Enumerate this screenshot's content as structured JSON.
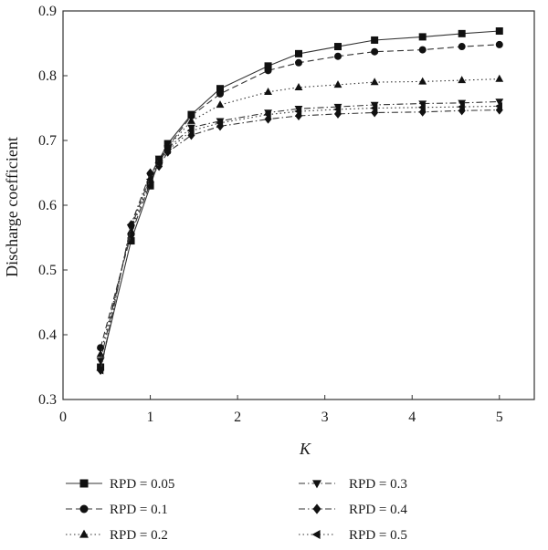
{
  "chart_data": {
    "type": "line",
    "title": "",
    "xlabel": "K",
    "ylabel": "Discharge coefficient",
    "xlim": [
      0,
      5.4
    ],
    "ylim": [
      0.3,
      0.9
    ],
    "xticks": [
      "0",
      "1",
      "2",
      "3",
      "4",
      "5"
    ],
    "yticks": [
      "0.3",
      "0.4",
      "0.5",
      "0.6",
      "0.7",
      "0.8",
      "0.9"
    ],
    "grid": false,
    "legend_position": "bottom",
    "series": [
      {
        "name": "RPD = 0.05",
        "marker": "square",
        "dash": "solid",
        "x": [
          0.43,
          0.78,
          1.0,
          1.1,
          1.2,
          1.47,
          1.8,
          2.35,
          2.7,
          3.15,
          3.57,
          4.12,
          4.57,
          5.0
        ],
        "y": [
          0.35,
          0.545,
          0.63,
          0.67,
          0.695,
          0.74,
          0.78,
          0.815,
          0.834,
          0.845,
          0.855,
          0.86,
          0.865,
          0.869
        ]
      },
      {
        "name": "RPD = 0.1",
        "marker": "circle",
        "dash": "dashed",
        "x": [
          0.43,
          0.78,
          1.0,
          1.1,
          1.2,
          1.47,
          1.8,
          2.35,
          2.7,
          3.15,
          3.57,
          4.12,
          4.57,
          5.0
        ],
        "y": [
          0.38,
          0.555,
          0.635,
          0.665,
          0.69,
          0.738,
          0.772,
          0.808,
          0.82,
          0.83,
          0.837,
          0.84,
          0.845,
          0.848
        ]
      },
      {
        "name": "RPD = 0.2",
        "marker": "triangle-up",
        "dash": "dotted",
        "x": [
          0.43,
          0.78,
          1.0,
          1.1,
          1.2,
          1.47,
          1.8,
          2.35,
          2.7,
          3.15,
          3.57,
          4.12,
          4.57,
          5.0
        ],
        "y": [
          0.37,
          0.56,
          0.64,
          0.67,
          0.69,
          0.73,
          0.755,
          0.775,
          0.782,
          0.786,
          0.79,
          0.791,
          0.793,
          0.795
        ]
      },
      {
        "name": "RPD = 0.3",
        "marker": "triangle-down",
        "dash": "dashdot",
        "x": [
          0.43,
          0.78,
          1.0,
          1.1,
          1.2,
          1.47,
          1.8,
          2.35,
          2.7,
          3.15,
          3.57,
          4.12,
          4.57,
          5.0
        ],
        "y": [
          0.36,
          0.565,
          0.645,
          0.672,
          0.688,
          0.72,
          0.73,
          0.743,
          0.749,
          0.752,
          0.755,
          0.757,
          0.758,
          0.76
        ]
      },
      {
        "name": "RPD = 0.4",
        "marker": "diamond",
        "dash": "dashdot",
        "x": [
          0.43,
          0.78,
          1.0,
          1.1,
          1.2,
          1.47,
          1.8,
          2.35,
          2.7,
          3.15,
          3.57,
          4.12,
          4.57,
          5.0
        ],
        "y": [
          0.345,
          0.57,
          0.65,
          0.66,
          0.682,
          0.708,
          0.722,
          0.733,
          0.738,
          0.741,
          0.743,
          0.744,
          0.746,
          0.747
        ]
      },
      {
        "name": "RPD = 0.5",
        "marker": "triangle-left",
        "dash": "dotted",
        "x": [
          0.43,
          0.78,
          1.0,
          1.1,
          1.2,
          1.47,
          1.8,
          2.35,
          2.7,
          3.15,
          3.57,
          4.12,
          4.57,
          5.0
        ],
        "y": [
          0.345,
          0.57,
          0.64,
          0.665,
          0.685,
          0.715,
          0.727,
          0.74,
          0.745,
          0.748,
          0.75,
          0.751,
          0.752,
          0.753
        ]
      }
    ]
  }
}
